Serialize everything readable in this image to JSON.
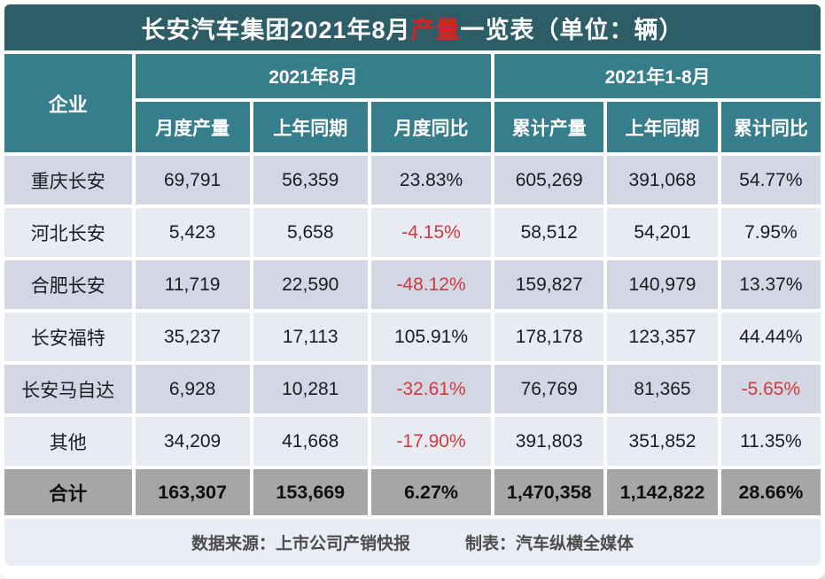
{
  "title": {
    "prefix": "长安汽车集团2021年8月",
    "highlight": "产量",
    "suffix": "一览表（单位：辆）"
  },
  "header": {
    "company": "企业",
    "group_aug": "2021年8月",
    "group_ytd": "2021年1-8月",
    "cols": [
      "月度产量",
      "上年同期",
      "月度同比",
      "累计产量",
      "上年同期",
      "累计同比"
    ]
  },
  "rows": [
    {
      "company": "重庆长安",
      "cells": [
        {
          "text": "69,791"
        },
        {
          "text": "56,359"
        },
        {
          "text": "23.83%"
        },
        {
          "text": "605,269"
        },
        {
          "text": "391,068"
        },
        {
          "text": "54.77%"
        }
      ]
    },
    {
      "company": "河北长安",
      "cells": [
        {
          "text": "5,423"
        },
        {
          "text": "5,658"
        },
        {
          "text": "-4.15%",
          "negative": true
        },
        {
          "text": "58,512"
        },
        {
          "text": "54,201"
        },
        {
          "text": "7.95%"
        }
      ]
    },
    {
      "company": "合肥长安",
      "cells": [
        {
          "text": "11,719"
        },
        {
          "text": "22,590"
        },
        {
          "text": "-48.12%",
          "negative": true
        },
        {
          "text": "159,827"
        },
        {
          "text": "140,979"
        },
        {
          "text": "13.37%"
        }
      ]
    },
    {
      "company": "长安福特",
      "cells": [
        {
          "text": "35,237"
        },
        {
          "text": "17,113"
        },
        {
          "text": "105.91%"
        },
        {
          "text": "178,178"
        },
        {
          "text": "123,357"
        },
        {
          "text": "44.44%"
        }
      ]
    },
    {
      "company": "长安马自达",
      "cells": [
        {
          "text": "6,928"
        },
        {
          "text": "10,281"
        },
        {
          "text": "-32.61%",
          "negative": true
        },
        {
          "text": "76,769"
        },
        {
          "text": "81,365"
        },
        {
          "text": "-5.65%",
          "negative": true
        }
      ]
    },
    {
      "company": "其他",
      "cells": [
        {
          "text": "34,209"
        },
        {
          "text": "41,668"
        },
        {
          "text": "-17.90%",
          "negative": true
        },
        {
          "text": "391,803"
        },
        {
          "text": "351,852"
        },
        {
          "text": "11.35%"
        }
      ]
    }
  ],
  "total": {
    "company": "合计",
    "cells": [
      {
        "text": "163,307"
      },
      {
        "text": "153,669"
      },
      {
        "text": "6.27%"
      },
      {
        "text": "1,470,358"
      },
      {
        "text": "1,142,822"
      },
      {
        "text": "28.66%"
      }
    ]
  },
  "footer": {
    "source": "数据来源：上市公司产销快报",
    "credit": "制表：汽车纵横全媒体"
  },
  "colors": {
    "title_bg": "#2d5e68",
    "header_bg": "#377e8d",
    "row_odd": "#d3d7e3",
    "row_even": "#e9ebf2",
    "total_bg": "#a6a6a6",
    "footer_bg": "#eaedf5",
    "negative_red": "#cf3a3f",
    "title_red": "#e01f1f",
    "data_text": "#1b1b26"
  },
  "chart_data": {
    "type": "table",
    "title": "长安汽车集团2021年8月产量一览表（单位：辆）",
    "column_groups": [
      {
        "label": "2021年8月",
        "columns": [
          "月度产量",
          "上年同期",
          "月度同比"
        ]
      },
      {
        "label": "2021年1-8月",
        "columns": [
          "累计产量",
          "上年同期",
          "累计同比"
        ]
      }
    ],
    "columns": [
      "企业",
      "月度产量",
      "上年同期",
      "月度同比",
      "累计产量",
      "上年同期",
      "累计同比"
    ],
    "rows": [
      [
        "重庆长安",
        "69,791",
        "56,359",
        "23.83%",
        "605,269",
        "391,068",
        "54.77%"
      ],
      [
        "河北长安",
        "5,423",
        "5,658",
        "-4.15%",
        "58,512",
        "54,201",
        "7.95%"
      ],
      [
        "合肥长安",
        "11,719",
        "22,590",
        "-48.12%",
        "159,827",
        "140,979",
        "13.37%"
      ],
      [
        "长安福特",
        "35,237",
        "17,113",
        "105.91%",
        "178,178",
        "123,357",
        "44.44%"
      ],
      [
        "长安马自达",
        "6,928",
        "10,281",
        "-32.61%",
        "76,769",
        "81,365",
        "-5.65%"
      ],
      [
        "其他",
        "34,209",
        "41,668",
        "-17.90%",
        "391,803",
        "351,852",
        "11.35%"
      ],
      [
        "合计",
        "163,307",
        "153,669",
        "6.27%",
        "1,470,358",
        "1,142,822",
        "28.66%"
      ]
    ],
    "source_note": "数据来源：上市公司产销快报",
    "credit_note": "制表：汽车纵横全媒体"
  }
}
